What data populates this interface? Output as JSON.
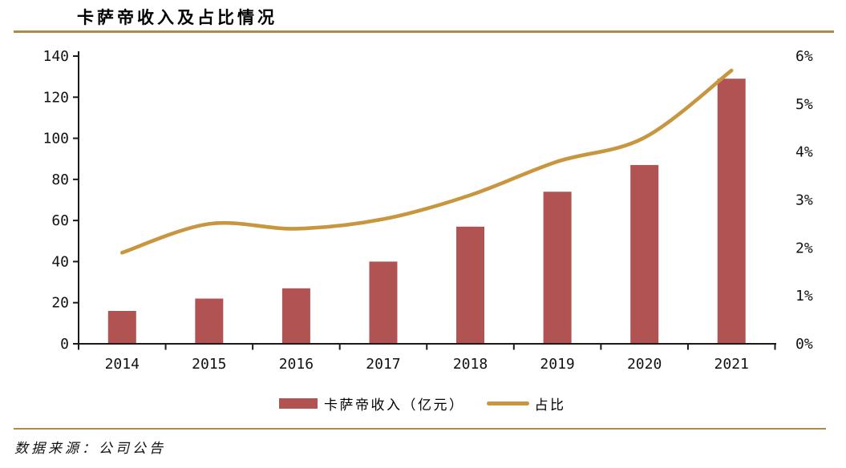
{
  "title": "卡萨帝收入及占比情况",
  "source_note": "数据来源：公司公告",
  "legend": {
    "bar_label": "卡萨帝收入（亿元）",
    "line_label": "占比"
  },
  "colors": {
    "bar": "#b25353",
    "line": "#c8963e",
    "rule": "#ab8b4b",
    "axis": "#1a1a1a",
    "text": "#000000"
  },
  "chart_data": {
    "type": "bar",
    "subtype": "combo-bar-line-dual-axis",
    "title": "卡萨帝收入及占比情况",
    "categories": [
      "2014",
      "2015",
      "2016",
      "2017",
      "2018",
      "2019",
      "2020",
      "2021"
    ],
    "series": [
      {
        "name": "卡萨帝收入（亿元）",
        "type": "bar",
        "axis": "left",
        "values": [
          16,
          22,
          27,
          40,
          57,
          74,
          87,
          129
        ]
      },
      {
        "name": "占比",
        "type": "line",
        "axis": "right",
        "unit": "%",
        "values": [
          1.9,
          2.5,
          2.4,
          2.6,
          3.1,
          3.8,
          4.3,
          5.7
        ]
      }
    ],
    "left_axis": {
      "min": 0,
      "max": 140,
      "step": 20,
      "ticks": [
        "0",
        "20",
        "40",
        "60",
        "80",
        "100",
        "120",
        "140"
      ]
    },
    "right_axis": {
      "min": 0,
      "max": 6,
      "step": 1,
      "ticks": [
        "0%",
        "1%",
        "2%",
        "3%",
        "4%",
        "5%",
        "6%"
      ]
    },
    "grid": false,
    "line_smoothed": true,
    "legend_position": "bottom",
    "xlabel": "",
    "ylabel": ""
  }
}
